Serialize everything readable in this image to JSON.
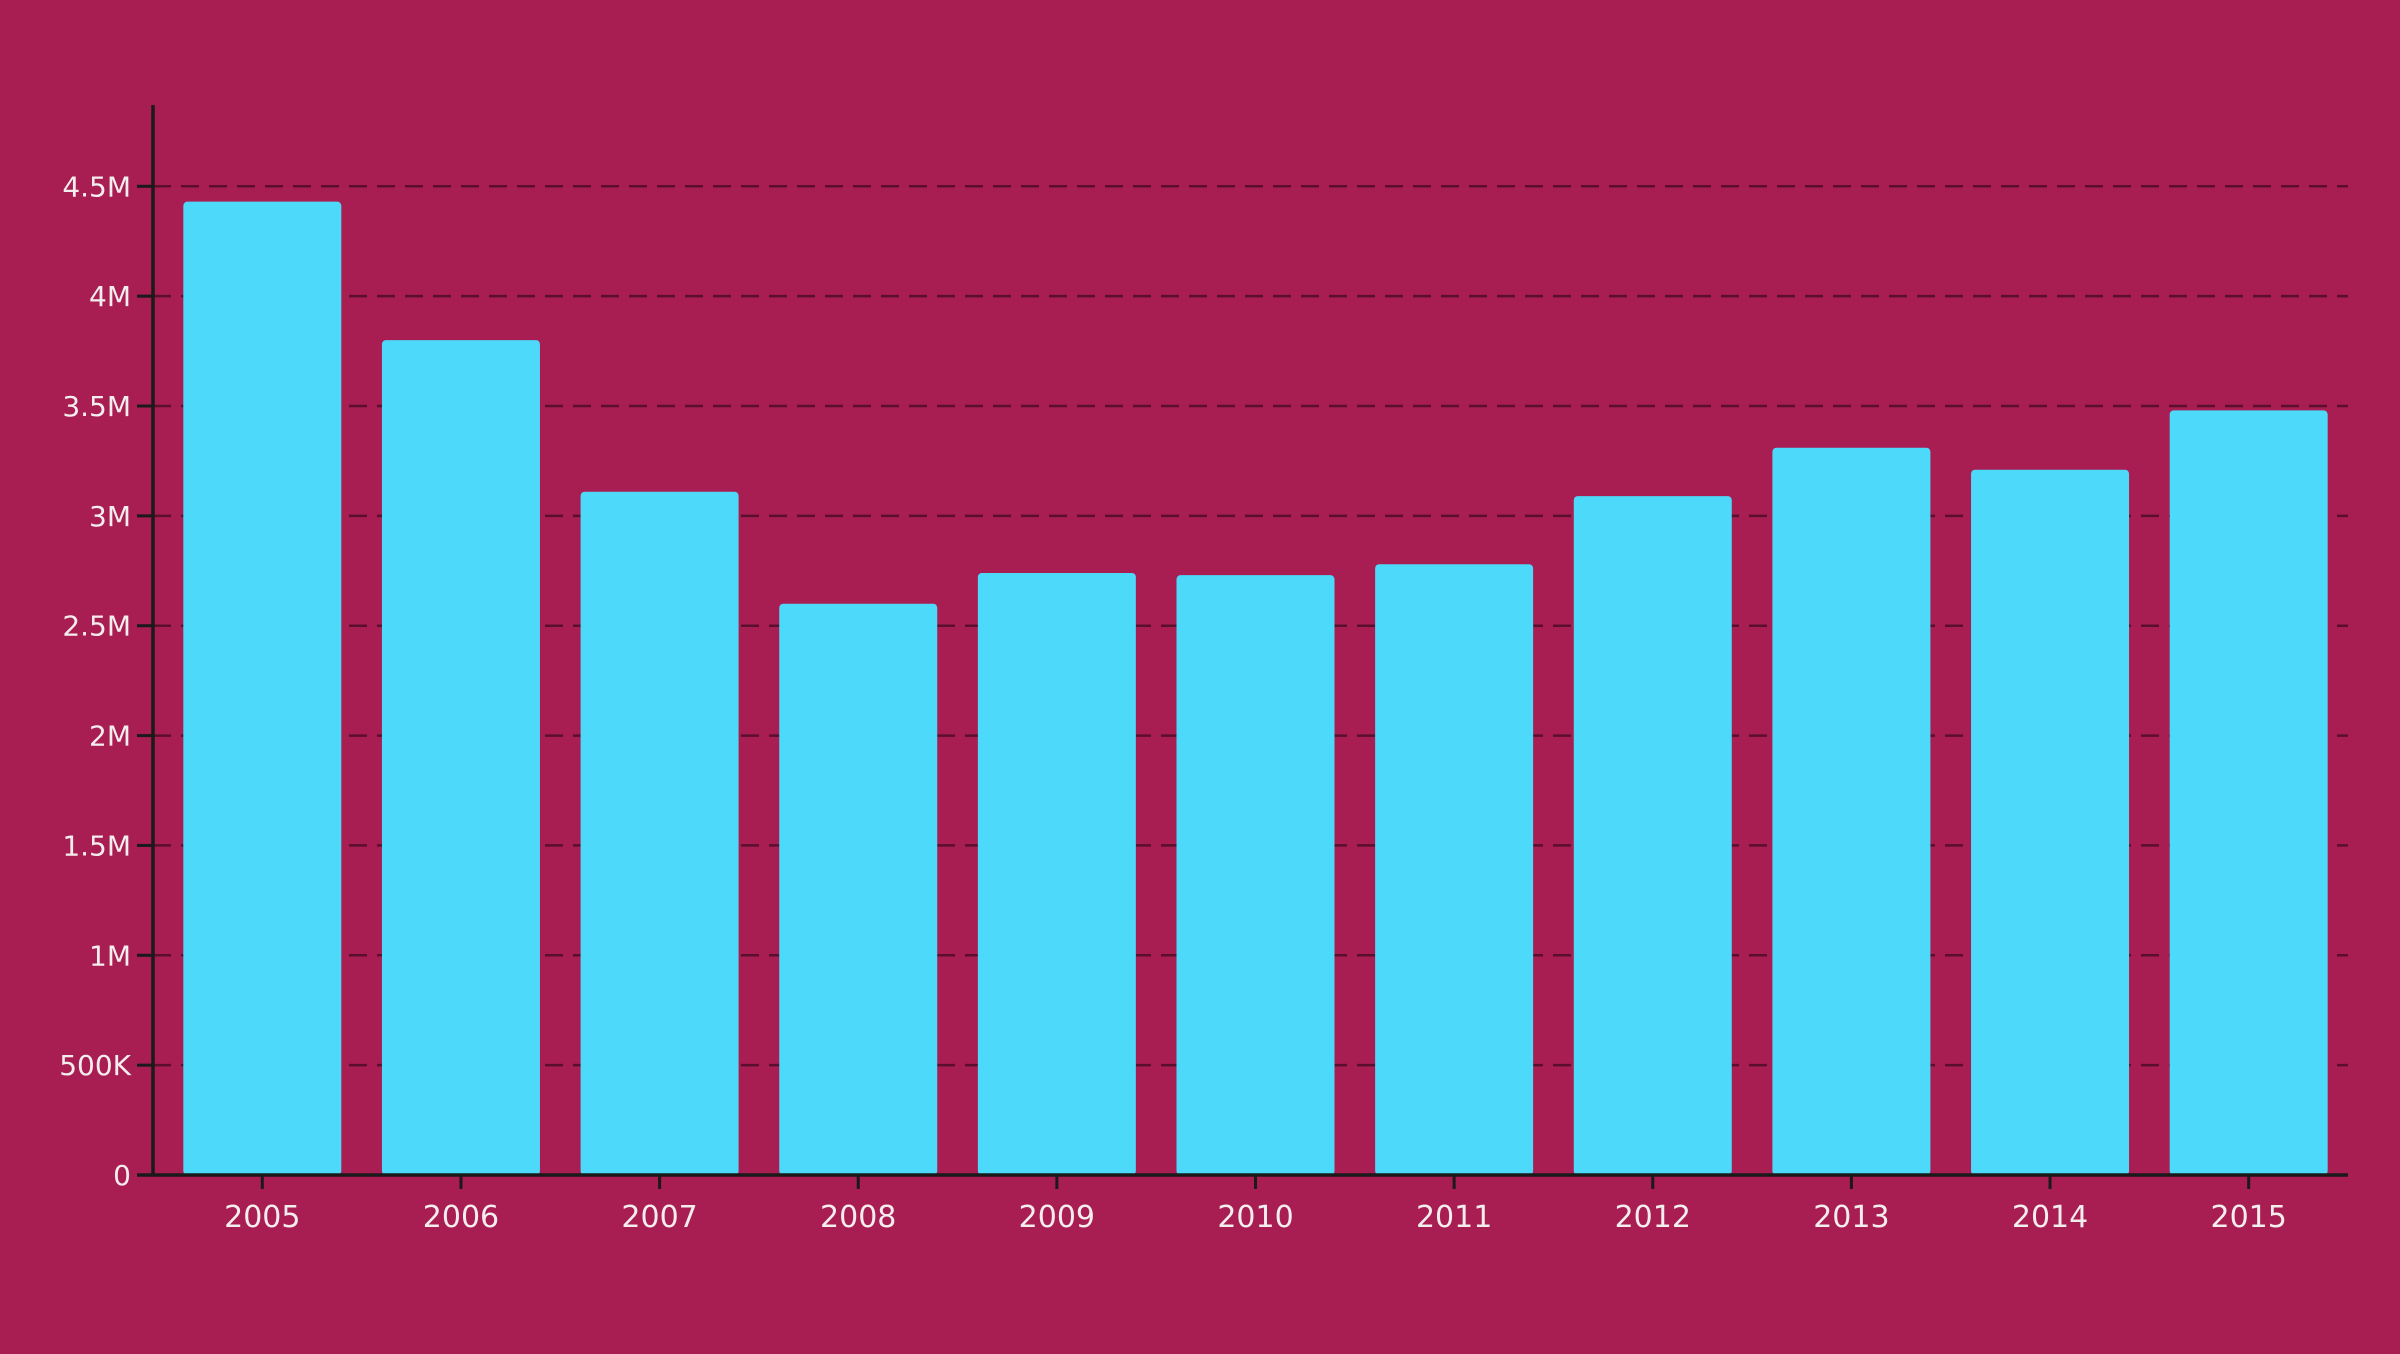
{
  "colors": {
    "background": "#A81D52",
    "bar": "#4DD9FA",
    "axis": "#1a1a1a",
    "grid": "#5a0f2c",
    "tick_text": "#F4EDEE"
  },
  "chart_data": {
    "type": "bar",
    "title": "",
    "xlabel": "",
    "ylabel": "",
    "categories": [
      "2005",
      "2006",
      "2007",
      "2008",
      "2009",
      "2010",
      "2011",
      "2012",
      "2013",
      "2014",
      "2015"
    ],
    "values": [
      4430000,
      3800000,
      3110000,
      2600000,
      2740000,
      2730000,
      2780000,
      3090000,
      3310000,
      3210000,
      3480000
    ],
    "ylim": [
      0,
      4870000
    ],
    "yticks": [
      0,
      500000,
      1000000,
      1500000,
      2000000,
      2500000,
      3000000,
      3500000,
      4000000,
      4500000
    ],
    "ytick_labels": [
      "0",
      "500K",
      "1M",
      "1.5M",
      "2M",
      "2.5M",
      "3M",
      "3.5M",
      "4M",
      "4.5M"
    ],
    "grid": "horizontal-dashed"
  }
}
